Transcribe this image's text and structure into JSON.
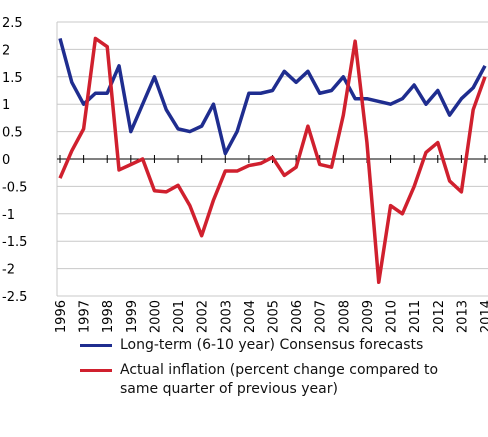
{
  "chart_data": {
    "type": "line",
    "x": [
      1996,
      1996.5,
      1997,
      1997.5,
      1998,
      1998.5,
      1999,
      1999.5,
      2000,
      2000.5,
      2001,
      2001.5,
      2002,
      2002.5,
      2003,
      2003.5,
      2004,
      2004.5,
      2005,
      2005.5,
      2006,
      2006.5,
      2007,
      2007.5,
      2008,
      2008.5,
      2009,
      2009.5,
      2010,
      2010.5,
      2011,
      2011.5,
      2012,
      2012.5,
      2013,
      2013.5,
      2014
    ],
    "series": [
      {
        "name": "Long-term (6-10 year) Consensus forecasts",
        "color": "#1f2d8f",
        "values": [
          2.2,
          1.4,
          1.0,
          1.2,
          1.2,
          1.7,
          0.5,
          1.0,
          1.5,
          0.9,
          0.55,
          0.5,
          0.6,
          1.0,
          0.1,
          0.5,
          1.2,
          1.2,
          1.25,
          1.6,
          1.4,
          1.6,
          1.2,
          1.25,
          1.5,
          1.1,
          1.1,
          1.05,
          1.0,
          1.1,
          1.35,
          1.0,
          1.25,
          0.8,
          1.1,
          1.3,
          1.7
        ]
      },
      {
        "name": "Actual inflation (percent change compared to same quarter of previous year)",
        "color": "#d0202e",
        "values": [
          -0.35,
          0.15,
          0.55,
          2.2,
          2.05,
          -0.2,
          -0.1,
          0.0,
          -0.58,
          -0.6,
          -0.48,
          -0.85,
          -1.4,
          -0.75,
          -0.22,
          -0.22,
          -0.12,
          -0.08,
          0.03,
          -0.3,
          -0.15,
          0.6,
          -0.1,
          -0.15,
          0.8,
          2.15,
          0.3,
          -2.25,
          -0.85,
          -1.0,
          -0.5,
          0.12,
          0.3,
          -0.4,
          -0.6,
          0.9,
          1.5
        ]
      }
    ],
    "xlim": [
      1996,
      2014
    ],
    "xticks": [
      1996,
      1997,
      1998,
      1999,
      2000,
      2001,
      2002,
      2003,
      2004,
      2005,
      2006,
      2007,
      2008,
      2009,
      2010,
      2011,
      2012,
      2013,
      2014
    ],
    "ylim": [
      -2.5,
      2.5
    ],
    "yticks": [
      -2.5,
      -2,
      -1.5,
      -1,
      -0.5,
      0,
      0.5,
      1,
      1.5,
      2,
      2.5
    ],
    "grid": true
  }
}
